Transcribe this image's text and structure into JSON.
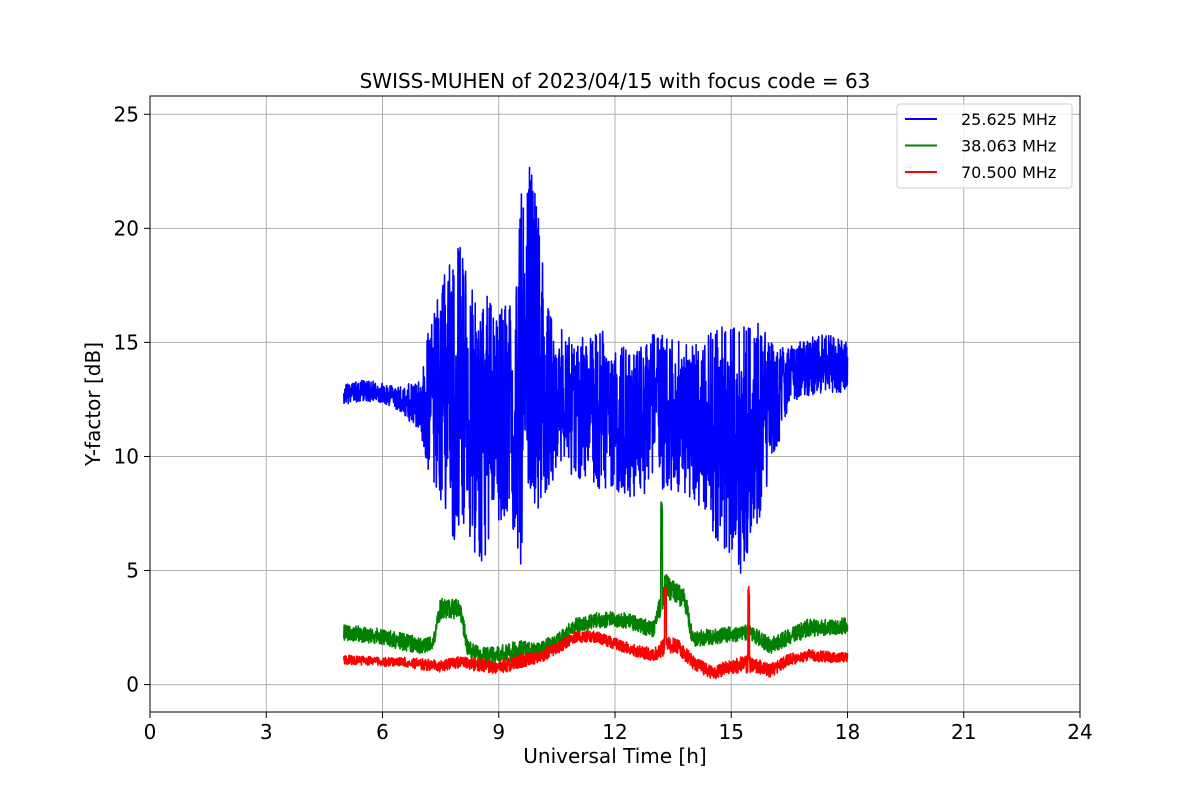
{
  "chart_data": {
    "type": "line",
    "title": "SWISS-MUHEN of 2023/04/15 with focus code = 63",
    "xlabel": "Universal Time [h]",
    "ylabel": "Y-factor [dB]",
    "xlim": [
      0,
      24
    ],
    "ylim": [
      -1.2,
      25.8
    ],
    "xticks": [
      0,
      3,
      6,
      9,
      12,
      15,
      18,
      21,
      24
    ],
    "yticks": [
      0,
      5,
      10,
      15,
      20,
      25
    ],
    "grid": true,
    "legend_position": "top-right",
    "series": [
      {
        "name": "25.625 MHz",
        "color": "#0000ff",
        "x": [
          5.0,
          5.5,
          6.0,
          6.5,
          7.0,
          7.2,
          7.4,
          7.6,
          7.8,
          8.0,
          8.2,
          8.4,
          8.6,
          8.8,
          9.0,
          9.2,
          9.4,
          9.6,
          9.8,
          10.0,
          10.2,
          10.5,
          11.0,
          11.5,
          12.0,
          12.5,
          13.0,
          13.5,
          14.0,
          14.5,
          15.0,
          15.3,
          15.6,
          15.9,
          16.2,
          16.5,
          17.0,
          17.5,
          18.0
        ],
        "y": [
          12.7,
          12.9,
          12.8,
          12.5,
          12.2,
          12.4,
          12.8,
          12.5,
          12.6,
          13.2,
          12.2,
          11.4,
          11.0,
          11.8,
          11.6,
          12.5,
          11.4,
          13.5,
          15.2,
          14.6,
          12.9,
          12.4,
          12.3,
          12.1,
          11.9,
          11.4,
          12.1,
          11.8,
          11.5,
          11.1,
          10.8,
          10.2,
          11.5,
          11.8,
          12.6,
          13.6,
          13.9,
          14.1,
          13.9
        ],
        "spread": [
          0.45,
          0.45,
          0.45,
          0.55,
          1.3,
          3.5,
          4.5,
          5.5,
          6.5,
          6.5,
          5.5,
          5.8,
          5.8,
          5.5,
          4.5,
          5.2,
          4.8,
          8.5,
          7.5,
          7.5,
          4.5,
          3.2,
          3.2,
          3.6,
          3.4,
          3.4,
          3.4,
          3.4,
          3.6,
          4.5,
          5.2,
          5.5,
          4.8,
          3.8,
          2.2,
          1.2,
          1.3,
          1.3,
          1.1
        ]
      },
      {
        "name": "38.063 MHz",
        "color": "#008000",
        "x": [
          5.0,
          5.5,
          6.0,
          6.5,
          7.0,
          7.3,
          7.5,
          7.8,
          8.0,
          8.2,
          8.5,
          8.8,
          9.0,
          9.5,
          10.0,
          10.5,
          11.0,
          11.5,
          12.0,
          12.5,
          13.0,
          13.3,
          13.5,
          13.8,
          14.0,
          14.5,
          15.0,
          15.5,
          16.0,
          16.5,
          17.0,
          17.5,
          18.0
        ],
        "y": [
          2.3,
          2.2,
          2.1,
          1.9,
          1.7,
          1.8,
          3.3,
          3.3,
          3.4,
          1.6,
          1.3,
          1.2,
          1.3,
          1.5,
          1.5,
          1.9,
          2.6,
          2.8,
          2.9,
          2.7,
          2.4,
          4.3,
          4.1,
          3.8,
          2.0,
          2.1,
          2.2,
          2.3,
          1.7,
          2.1,
          2.5,
          2.5,
          2.6
        ],
        "spread": [
          0.35,
          0.35,
          0.35,
          0.4,
          0.35,
          0.3,
          0.5,
          0.45,
          0.45,
          0.35,
          0.4,
          0.45,
          0.4,
          0.45,
          0.35,
          0.35,
          0.35,
          0.35,
          0.35,
          0.35,
          0.35,
          0.6,
          0.5,
          0.5,
          0.35,
          0.35,
          0.35,
          0.35,
          0.35,
          0.35,
          0.4,
          0.35,
          0.35
        ]
      },
      {
        "name": "70.500 MHz",
        "color": "#ff0000",
        "x": [
          5.0,
          5.5,
          6.0,
          6.5,
          7.0,
          7.5,
          8.0,
          8.5,
          9.0,
          9.5,
          10.0,
          10.5,
          11.0,
          11.5,
          12.0,
          12.5,
          13.0,
          13.3,
          13.6,
          14.0,
          14.5,
          15.0,
          15.4,
          15.7,
          16.0,
          16.5,
          17.0,
          17.5,
          18.0
        ],
        "y": [
          1.1,
          1.05,
          1.0,
          1.0,
          0.9,
          0.8,
          1.0,
          0.85,
          0.75,
          1.0,
          1.2,
          1.6,
          2.1,
          2.1,
          1.8,
          1.5,
          1.3,
          1.7,
          1.7,
          1.0,
          0.5,
          0.8,
          0.9,
          0.8,
          0.6,
          1.1,
          1.3,
          1.2,
          1.2
        ],
        "spread": [
          0.2,
          0.2,
          0.2,
          0.2,
          0.25,
          0.25,
          0.25,
          0.3,
          0.3,
          0.3,
          0.3,
          0.25,
          0.25,
          0.25,
          0.25,
          0.25,
          0.3,
          0.4,
          0.35,
          0.3,
          0.3,
          0.3,
          0.4,
          0.3,
          0.3,
          0.25,
          0.25,
          0.25,
          0.2
        ]
      }
    ],
    "peaks": [
      {
        "series": 1,
        "x": 13.2,
        "y": 8.2
      },
      {
        "series": 2,
        "x": 15.45,
        "y": 4.5
      },
      {
        "series": 2,
        "x": 13.3,
        "y": 4.3
      }
    ]
  }
}
